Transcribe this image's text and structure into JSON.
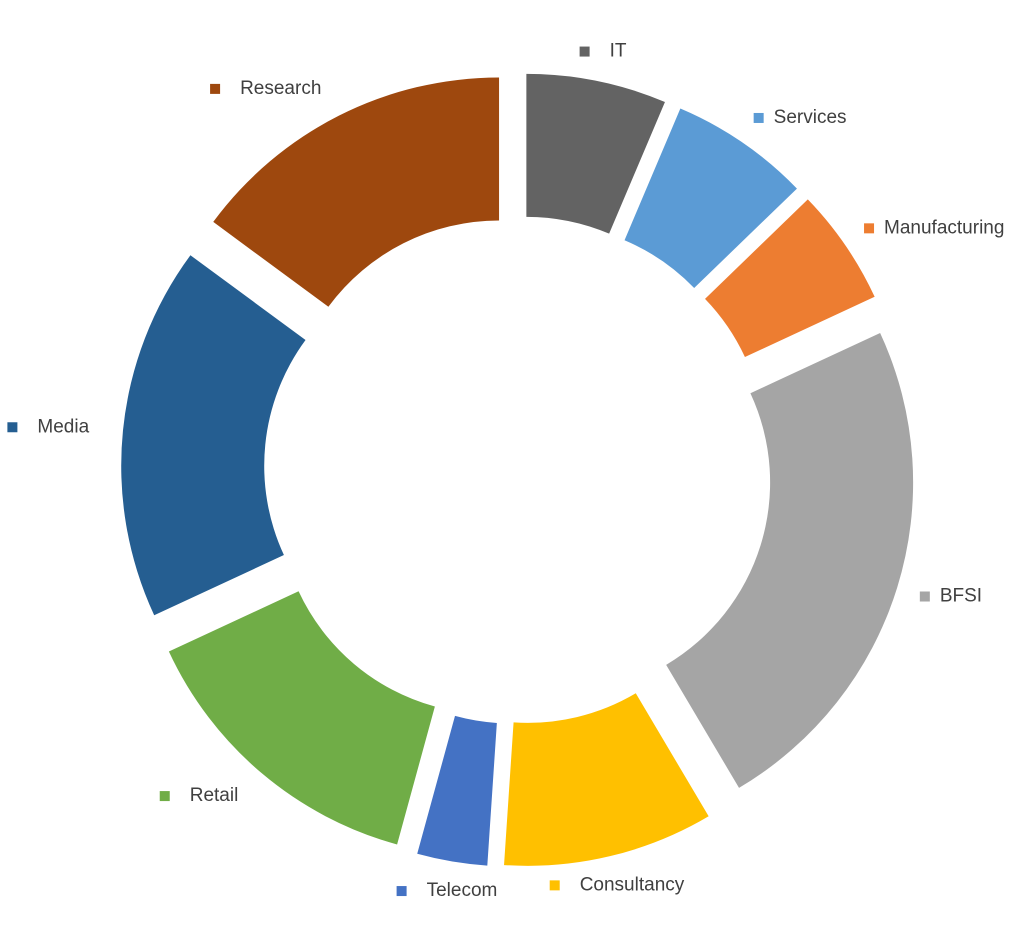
{
  "chart_data": {
    "type": "pie",
    "variant": "exploded-doughnut",
    "title": "",
    "legend": "none",
    "data_labels": "category-name",
    "categories": [
      "IT",
      "Services",
      "Manufacturing",
      "BFSI",
      "Consultancy",
      "Telecom",
      "Retail",
      "Media",
      "Research"
    ],
    "values": [
      6,
      6,
      5,
      22,
      9,
      3,
      13,
      16,
      14
    ],
    "colors": [
      "#636363",
      "#5B9BD5",
      "#ED7D31",
      "#A5A5A5",
      "#FFC000",
      "#4472C4",
      "#70AD47",
      "#255E91",
      "#9E480E"
    ]
  }
}
